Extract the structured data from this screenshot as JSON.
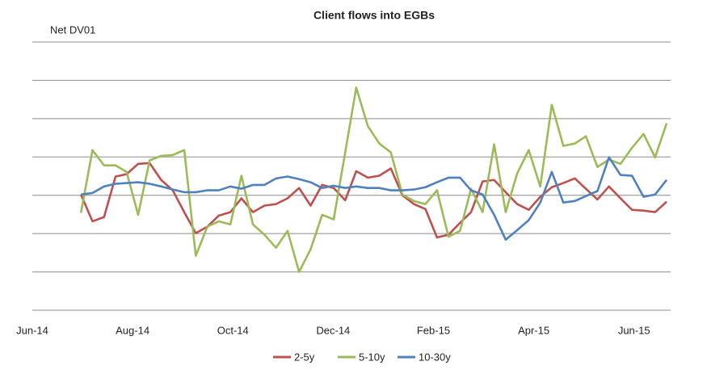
{
  "chart_data": {
    "type": "line",
    "title": "Client flows into EGBs",
    "y_label": "Net DV01",
    "x": [
      0.97,
      1.2,
      1.43,
      1.66,
      1.88,
      2.11,
      2.34,
      2.57,
      2.8,
      3.03,
      3.26,
      3.49,
      3.72,
      3.95,
      4.17,
      4.4,
      4.63,
      4.86,
      5.09,
      5.32,
      5.55,
      5.78,
      6.01,
      6.24,
      6.46,
      6.69,
      6.92,
      7.15,
      7.38,
      7.61,
      7.84,
      8.07,
      8.3,
      8.53,
      8.75,
      8.98,
      9.21,
      9.44,
      9.67,
      9.9,
      10.13,
      10.36,
      10.59,
      10.82,
      11.04,
      11.27,
      11.5,
      11.73,
      11.96,
      12.19,
      12.42,
      12.65
    ],
    "series": [
      {
        "name": "2-5y",
        "color": "#c0504d",
        "values": [
          0.02,
          -0.68,
          -0.57,
          0.49,
          0.55,
          0.82,
          0.84,
          0.4,
          0.13,
          -0.44,
          -0.99,
          -0.82,
          -0.53,
          -0.44,
          -0.08,
          -0.44,
          -0.27,
          -0.23,
          -0.08,
          0.19,
          -0.27,
          0.27,
          0.19,
          -0.13,
          0.63,
          0.46,
          0.51,
          0.7,
          0,
          -0.23,
          -0.36,
          -1.1,
          -1.03,
          -0.72,
          -0.44,
          0.36,
          0.4,
          0.08,
          -0.23,
          -0.38,
          -0.04,
          0.21,
          0.32,
          0.44,
          0.17,
          -0.11,
          0.23,
          -0.08,
          -0.38,
          -0.4,
          -0.44,
          -0.17
        ]
      },
      {
        "name": "5-10y",
        "color": "#9bbb59",
        "values": [
          -0.46,
          1.18,
          0.78,
          0.78,
          0.61,
          -0.51,
          0.91,
          1.03,
          1.05,
          1.18,
          -1.58,
          -0.82,
          -0.68,
          -0.76,
          0.51,
          -0.76,
          -1.03,
          -1.37,
          -0.93,
          -2,
          -1.41,
          -0.51,
          -0.63,
          1.12,
          2.81,
          1.81,
          1.35,
          1.12,
          0.02,
          -0.15,
          -0.23,
          0.13,
          -1.08,
          -0.93,
          0.17,
          -0.44,
          1.33,
          -0.44,
          0.57,
          1.18,
          0.23,
          2.36,
          1.29,
          1.35,
          1.54,
          0.74,
          0.93,
          0.82,
          1.24,
          1.6,
          0.99,
          1.88
        ]
      },
      {
        "name": "10-30y",
        "color": "#4f81bd",
        "values": [
          0.02,
          0.06,
          0.23,
          0.3,
          0.32,
          0.34,
          0.3,
          0.23,
          0.15,
          0.08,
          0.08,
          0.13,
          0.13,
          0.23,
          0.17,
          0.27,
          0.27,
          0.44,
          0.49,
          0.42,
          0.34,
          0.19,
          0.25,
          0.19,
          0.23,
          0.19,
          0.19,
          0.13,
          0.13,
          0.15,
          0.21,
          0.34,
          0.46,
          0.46,
          0.13,
          0.02,
          -0.51,
          -1.16,
          -0.91,
          -0.65,
          -0.19,
          0.61,
          -0.19,
          -0.15,
          -0.02,
          0.11,
          0.99,
          0.53,
          0.51,
          -0.04,
          0.02,
          0.4
        ]
      }
    ],
    "xlim": [
      0,
      12.73
    ],
    "xticks": [
      {
        "value": 0,
        "label": "Jun-14"
      },
      {
        "value": 2,
        "label": "Aug-14"
      },
      {
        "value": 4,
        "label": "Oct-14"
      },
      {
        "value": 6,
        "label": "Dec-14"
      },
      {
        "value": 8,
        "label": "Feb-15"
      },
      {
        "value": 10,
        "label": "Apr-15"
      },
      {
        "value": 12,
        "label": "Jun-15"
      }
    ],
    "ylim": [
      -3,
      4
    ],
    "yticks": [
      -3,
      -2,
      -1,
      0,
      1,
      2,
      3,
      4
    ],
    "grid": true,
    "legend": "bottom"
  }
}
